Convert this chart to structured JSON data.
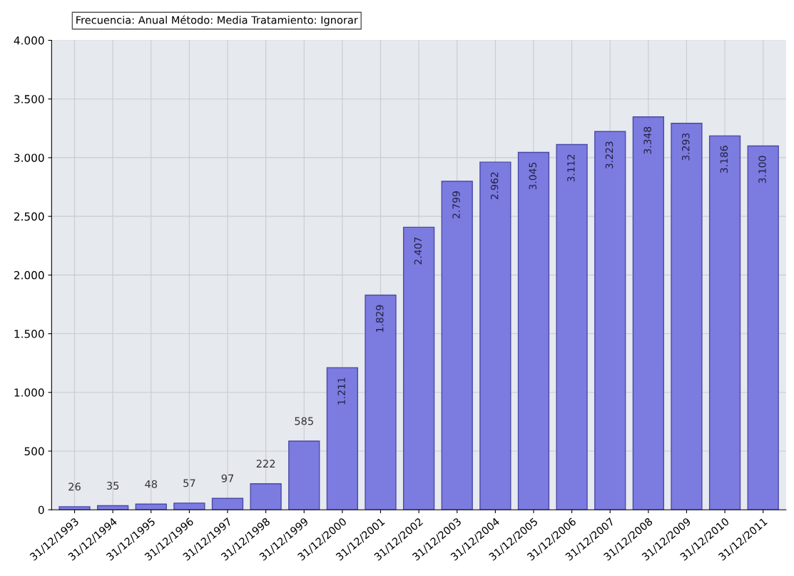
{
  "chart_data": {
    "type": "bar",
    "title": "Frecuencia: Anual Método: Media Tratamiento: Ignorar",
    "categories": [
      "31/12/1993",
      "31/12/1994",
      "31/12/1995",
      "31/12/1996",
      "31/12/1997",
      "31/12/1998",
      "31/12/1999",
      "31/12/2000",
      "31/12/2001",
      "31/12/2002",
      "31/12/2003",
      "31/12/2004",
      "31/12/2005",
      "31/12/2006",
      "31/12/2007",
      "31/12/2008",
      "31/12/2009",
      "31/12/2010",
      "31/12/2011"
    ],
    "values": [
      26,
      35,
      48,
      57,
      97,
      222,
      585,
      1211,
      1829,
      2407,
      2799,
      2962,
      3045,
      3112,
      3223,
      3348,
      3293,
      3186,
      3100
    ],
    "value_labels": [
      "26",
      "35",
      "48",
      "57",
      "97",
      "222",
      "585",
      "1.211",
      "1.829",
      "2.407",
      "2.799",
      "2.962",
      "3.045",
      "3.112",
      "3.223",
      "3.348",
      "3.293",
      "3.186",
      "3.100"
    ],
    "color": "#7b7be0",
    "ylim": [
      0,
      4000
    ],
    "yticks": [
      0,
      500,
      {
        "value": 1000,
        "label": "1.000"
      },
      {
        "value": 1500,
        "label": "1.500"
      },
      {
        "value": 2000,
        "label": "2.000"
      },
      {
        "value": 2500,
        "label": "2.500"
      },
      {
        "value": 3000,
        "label": "3.000"
      },
      {
        "value": 3500,
        "label": "3.500"
      },
      {
        "value": 4000,
        "label": "4.000"
      }
    ],
    "grid": true
  }
}
